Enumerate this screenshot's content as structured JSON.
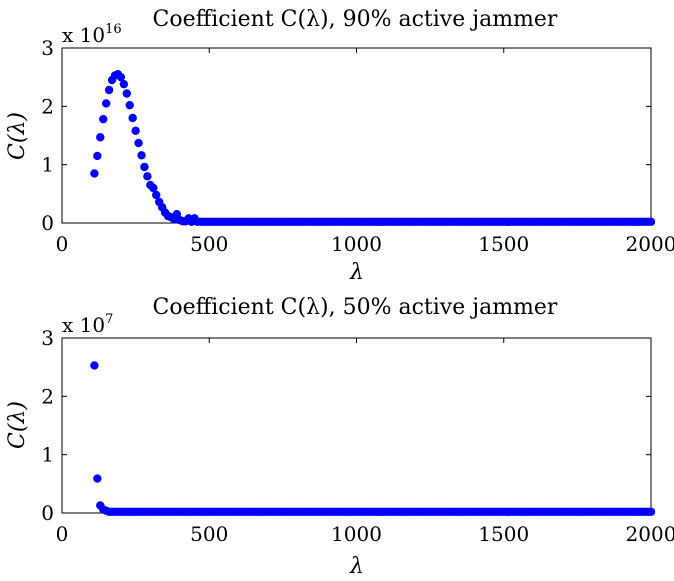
{
  "chart_data": [
    {
      "type": "scatter",
      "title": "Coefficient C(λ), 90% active jammer",
      "xlabel": "λ",
      "ylabel": "C(λ)",
      "multiplier": "x 10",
      "multiplier_exp": "16",
      "xlim": [
        0,
        2000
      ],
      "ylim": [
        0,
        3
      ],
      "xticks": [
        "0",
        "500",
        "1000",
        "1500",
        "2000"
      ],
      "yticks": [
        "0",
        "1",
        "2",
        "3"
      ],
      "grid": false,
      "color": "#0000ff",
      "series": [
        {
          "x": [
            110,
            120,
            130,
            140,
            150,
            160,
            170,
            180,
            190,
            200,
            210,
            220,
            230,
            240,
            250,
            260,
            270,
            280,
            290,
            300,
            310,
            320,
            330,
            340,
            350,
            360,
            370,
            380,
            390,
            400,
            410,
            420,
            430,
            440,
            450
          ],
          "y": [
            0.85,
            1.15,
            1.47,
            1.78,
            2.05,
            2.28,
            2.45,
            2.53,
            2.55,
            2.5,
            2.38,
            2.22,
            2.02,
            1.8,
            1.58,
            1.37,
            1.16,
            0.96,
            0.8,
            0.65,
            0.6,
            0.48,
            0.36,
            0.27,
            0.18,
            0.12,
            0.1,
            0.07,
            0.15,
            0.05,
            0.03,
            0.03,
            0.08,
            0.02,
            0.08
          ],
          "tail": {
            "x_from": 460,
            "x_to": 2000,
            "step": 10,
            "y": 0.02
          }
        }
      ]
    },
    {
      "type": "scatter",
      "title": "Coefficient C(λ), 50% active jammer",
      "xlabel": "λ",
      "ylabel": "C(λ)",
      "multiplier": "x 10",
      "multiplier_exp": "7",
      "xlim": [
        0,
        2000
      ],
      "ylim": [
        0,
        3
      ],
      "xticks": [
        "0",
        "500",
        "1000",
        "1500",
        "2000"
      ],
      "yticks": [
        "0",
        "1",
        "2",
        "3"
      ],
      "grid": false,
      "color": "#0000ff",
      "series": [
        {
          "x": [
            110,
            120,
            130,
            140,
            150
          ],
          "y": [
            2.53,
            0.59,
            0.13,
            0.06,
            0.04
          ],
          "tail": {
            "x_from": 160,
            "x_to": 2000,
            "step": 10,
            "y": 0.02
          }
        }
      ]
    }
  ]
}
